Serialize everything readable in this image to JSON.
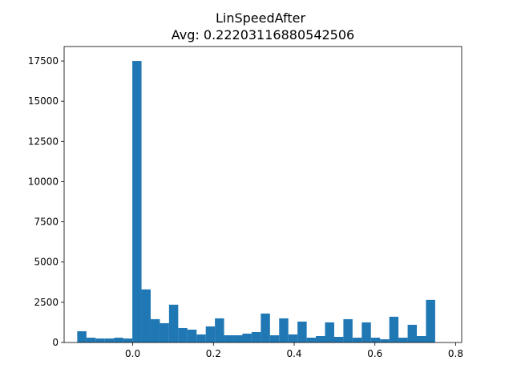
{
  "chart_data": {
    "type": "bar",
    "title": "LinSpeedAfter",
    "subtitle": "Avg: 0.22203116880542506",
    "xlabel": "",
    "ylabel": "",
    "xlim": [
      -0.17,
      0.815
    ],
    "ylim": [
      0,
      18400
    ],
    "grid": false,
    "bar_color": "#1f77b4",
    "xticks": [
      0.0,
      0.2,
      0.4,
      0.6,
      0.8
    ],
    "xtick_labels": [
      "0.0",
      "0.2",
      "0.4",
      "0.6",
      "0.8"
    ],
    "yticks": [
      0,
      2500,
      5000,
      7500,
      10000,
      12500,
      15000,
      17500
    ],
    "ytick_labels": [
      "0",
      "2500",
      "5000",
      "7500",
      "10000",
      "12500",
      "15000",
      "17500"
    ],
    "bins": [
      {
        "x0": -0.1375,
        "x1": -0.1147,
        "count": 700
      },
      {
        "x0": -0.1147,
        "x1": -0.092,
        "count": 300
      },
      {
        "x0": -0.092,
        "x1": -0.0693,
        "count": 250
      },
      {
        "x0": -0.0693,
        "x1": -0.0465,
        "count": 250
      },
      {
        "x0": -0.0465,
        "x1": -0.0238,
        "count": 300
      },
      {
        "x0": -0.0238,
        "x1": -0.001,
        "count": 250
      },
      {
        "x0": -0.001,
        "x1": 0.0217,
        "count": 17500
      },
      {
        "x0": 0.0217,
        "x1": 0.0444,
        "count": 3300
      },
      {
        "x0": 0.0444,
        "x1": 0.0672,
        "count": 1450
      },
      {
        "x0": 0.0672,
        "x1": 0.0899,
        "count": 1200
      },
      {
        "x0": 0.0899,
        "x1": 0.1127,
        "count": 2350
      },
      {
        "x0": 0.1127,
        "x1": 0.1354,
        "count": 900
      },
      {
        "x0": 0.1354,
        "x1": 0.1581,
        "count": 800
      },
      {
        "x0": 0.1581,
        "x1": 0.1809,
        "count": 500
      },
      {
        "x0": 0.1809,
        "x1": 0.2036,
        "count": 1000
      },
      {
        "x0": 0.2036,
        "x1": 0.2263,
        "count": 1500
      },
      {
        "x0": 0.2263,
        "x1": 0.2491,
        "count": 450
      },
      {
        "x0": 0.2491,
        "x1": 0.2718,
        "count": 450
      },
      {
        "x0": 0.2718,
        "x1": 0.2945,
        "count": 550
      },
      {
        "x0": 0.2945,
        "x1": 0.3173,
        "count": 650
      },
      {
        "x0": 0.3173,
        "x1": 0.34,
        "count": 1800
      },
      {
        "x0": 0.34,
        "x1": 0.3627,
        "count": 450
      },
      {
        "x0": 0.3627,
        "x1": 0.3855,
        "count": 1500
      },
      {
        "x0": 0.3855,
        "x1": 0.4082,
        "count": 500
      },
      {
        "x0": 0.4082,
        "x1": 0.431,
        "count": 1300
      },
      {
        "x0": 0.431,
        "x1": 0.4537,
        "count": 300
      },
      {
        "x0": 0.4537,
        "x1": 0.4764,
        "count": 400
      },
      {
        "x0": 0.4764,
        "x1": 0.4992,
        "count": 1250
      },
      {
        "x0": 0.4992,
        "x1": 0.5219,
        "count": 350
      },
      {
        "x0": 0.5219,
        "x1": 0.5446,
        "count": 1450
      },
      {
        "x0": 0.5446,
        "x1": 0.5674,
        "count": 300
      },
      {
        "x0": 0.5674,
        "x1": 0.5901,
        "count": 1250
      },
      {
        "x0": 0.5901,
        "x1": 0.6128,
        "count": 300
      },
      {
        "x0": 0.6128,
        "x1": 0.6356,
        "count": 200
      },
      {
        "x0": 0.6356,
        "x1": 0.6583,
        "count": 1600
      },
      {
        "x0": 0.6583,
        "x1": 0.6811,
        "count": 300
      },
      {
        "x0": 0.6811,
        "x1": 0.7038,
        "count": 1100
      },
      {
        "x0": 0.7038,
        "x1": 0.7265,
        "count": 400
      },
      {
        "x0": 0.7265,
        "x1": 0.7493,
        "count": 2650
      }
    ]
  }
}
